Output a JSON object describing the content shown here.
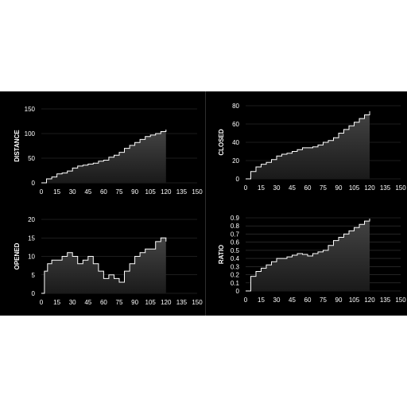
{
  "colors": {
    "background": "#000000",
    "line": "#ffffff",
    "fill_top": "#444444",
    "fill_bottom": "#1a1a1a",
    "grid": "#3a3a3a",
    "page": "#ffffff"
  },
  "chart_data": [
    {
      "type": "area",
      "ylabel": "DISTANCE",
      "xlim": [
        0,
        150
      ],
      "ylim": [
        0,
        150
      ],
      "xticks": [
        0,
        15,
        30,
        45,
        60,
        75,
        90,
        105,
        120,
        135,
        150
      ],
      "yticks": [
        0,
        50,
        100,
        150
      ],
      "grid": true,
      "series": [
        {
          "x": [
            0,
            5,
            10,
            15,
            20,
            25,
            30,
            35,
            40,
            45,
            50,
            55,
            60,
            65,
            70,
            75,
            80,
            85,
            90,
            95,
            100,
            105,
            110,
            115,
            120
          ],
          "y": [
            0,
            8,
            12,
            18,
            20,
            24,
            30,
            34,
            36,
            38,
            40,
            44,
            46,
            52,
            56,
            62,
            70,
            76,
            82,
            88,
            94,
            97,
            100,
            104,
            108
          ]
        }
      ]
    },
    {
      "type": "area",
      "ylabel": "CLOSED",
      "xlim": [
        0,
        150
      ],
      "ylim": [
        0,
        80
      ],
      "xticks": [
        0,
        15,
        30,
        45,
        60,
        75,
        90,
        105,
        120,
        135,
        150
      ],
      "yticks": [
        0,
        20,
        40,
        60,
        80
      ],
      "grid": true,
      "series": [
        {
          "x": [
            0,
            5,
            10,
            15,
            20,
            25,
            30,
            35,
            40,
            45,
            50,
            55,
            60,
            65,
            70,
            75,
            80,
            85,
            90,
            95,
            100,
            105,
            110,
            115,
            120
          ],
          "y": [
            0,
            8,
            13,
            16,
            18,
            21,
            25,
            27,
            28,
            30,
            32,
            34,
            34,
            35,
            37,
            40,
            42,
            45,
            50,
            54,
            58,
            62,
            66,
            70,
            74
          ]
        }
      ]
    },
    {
      "type": "area",
      "ylabel": "OPENED",
      "xlim": [
        0,
        150
      ],
      "ylim": [
        0,
        20
      ],
      "xticks": [
        0,
        15,
        30,
        45,
        60,
        75,
        90,
        105,
        120,
        135,
        150
      ],
      "yticks": [
        0,
        5,
        10,
        15,
        20
      ],
      "grid": true,
      "series": [
        {
          "x": [
            0,
            3,
            6,
            10,
            15,
            20,
            25,
            30,
            35,
            40,
            45,
            50,
            55,
            60,
            65,
            70,
            75,
            80,
            85,
            90,
            95,
            100,
            105,
            110,
            115,
            120
          ],
          "y": [
            0,
            6,
            8,
            9,
            9,
            10,
            11,
            10,
            8,
            9,
            10,
            8,
            6,
            4,
            5,
            4,
            3,
            6,
            8,
            10,
            11,
            12,
            12,
            14,
            15,
            14
          ]
        }
      ]
    },
    {
      "type": "area",
      "ylabel": "RATIO",
      "xlim": [
        0,
        150
      ],
      "ylim": [
        0,
        0.9
      ],
      "xticks": [
        0,
        15,
        30,
        45,
        60,
        75,
        90,
        105,
        120,
        135,
        150
      ],
      "yticks": [
        0,
        0.1,
        0.2,
        0.3,
        0.4,
        0.5,
        0.6,
        0.7,
        0.8,
        0.9
      ],
      "grid": true,
      "series": [
        {
          "x": [
            0,
            5,
            10,
            15,
            20,
            25,
            30,
            35,
            40,
            45,
            50,
            55,
            60,
            65,
            70,
            75,
            80,
            85,
            90,
            95,
            100,
            105,
            110,
            115,
            120
          ],
          "y": [
            0,
            0.18,
            0.24,
            0.28,
            0.32,
            0.36,
            0.4,
            0.4,
            0.42,
            0.44,
            0.46,
            0.45,
            0.43,
            0.46,
            0.48,
            0.5,
            0.56,
            0.62,
            0.66,
            0.7,
            0.74,
            0.78,
            0.82,
            0.86,
            0.89
          ]
        }
      ]
    }
  ]
}
